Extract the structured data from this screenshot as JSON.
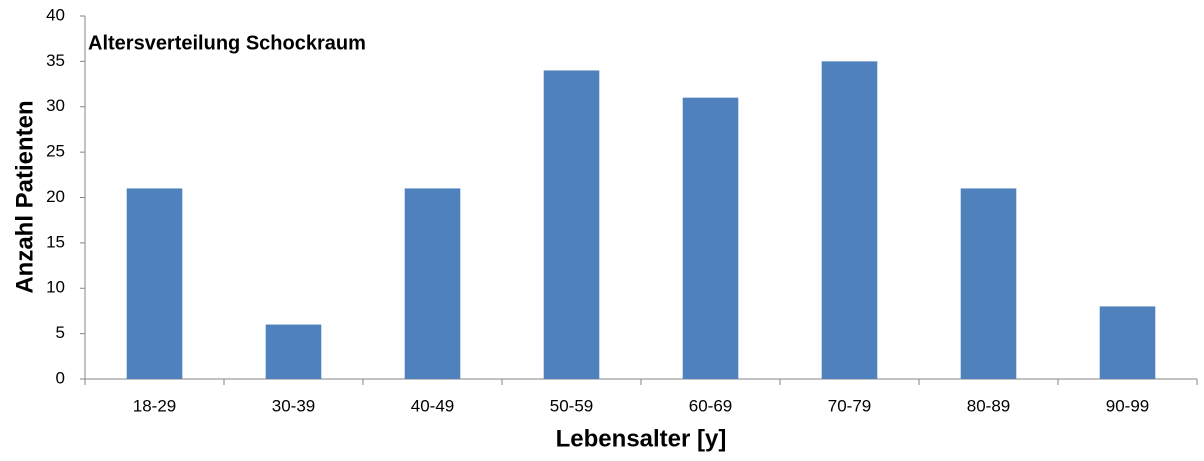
{
  "chart_data": {
    "type": "bar",
    "title": "Altersverteilung Schockraum",
    "x_label": "Lebensalter [y]",
    "y_label": "Anzahl Patienten",
    "categories": [
      "18-29",
      "30-39",
      "40-49",
      "50-59",
      "60-69",
      "70-79",
      "80-89",
      "90-99"
    ],
    "values": [
      21,
      6,
      21,
      34,
      31,
      35,
      21,
      8
    ],
    "color": "#4f81bd",
    "ylim": [
      0,
      40
    ],
    "yticks": [
      0,
      5,
      10,
      15,
      20,
      25,
      30,
      35,
      40
    ],
    "grid": false
  }
}
